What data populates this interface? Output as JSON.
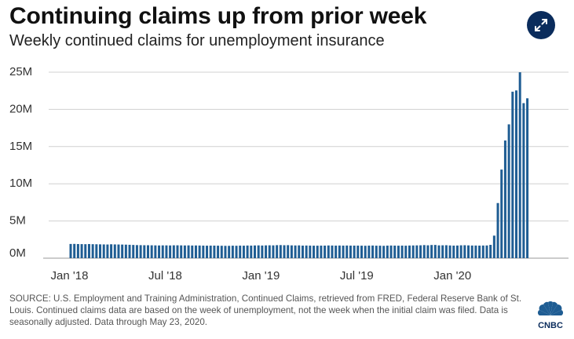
{
  "header": {
    "title": "Continuing claims up from prior week",
    "subtitle": "Weekly continued claims for unemployment insurance"
  },
  "icons": {
    "expand": "expand-arrows-icon",
    "logo": "cnbc-peacock-logo-icon"
  },
  "logo_text": "CNBC",
  "source": "SOURCE: U.S. Employment and Training Administration, Continued Claims, retrieved from FRED, Federal Reserve Bank of St. Louis. Continued claims data are based on the week of unemployment, not the week when the initial claim was filed. Data is seasonally adjusted. Data through May 23, 2020.",
  "colors": {
    "bar": "#1f5d93",
    "grid": "#d0d0d0",
    "accent": "#0a2c5c"
  },
  "chart_data": {
    "type": "bar",
    "title": "Continuing claims up from prior week",
    "subtitle": "Weekly continued claims for unemployment insurance",
    "ylim": [
      0,
      25000000
    ],
    "yticks": [
      0,
      5000000,
      10000000,
      15000000,
      20000000,
      25000000
    ],
    "ytick_labels": [
      "0M",
      "5M",
      "10M",
      "15M",
      "20M",
      "25M"
    ],
    "xtick_labels": [
      "Jan '18",
      "Jul '18",
      "Jan '19",
      "Jul '19",
      "Jan '20"
    ],
    "xtick_weeks": [
      0,
      26,
      52,
      78,
      104
    ],
    "x_start": "2018-01-06",
    "x_end": "2020-05-23",
    "frequency": "weekly",
    "series": [
      {
        "values": [
          1910000,
          1920000,
          1900000,
          1890000,
          1880000,
          1900000,
          1880000,
          1870000,
          1860000,
          1850000,
          1840000,
          1870000,
          1850000,
          1840000,
          1830000,
          1820000,
          1800000,
          1780000,
          1760000,
          1750000,
          1740000,
          1740000,
          1730000,
          1720000,
          1710000,
          1720000,
          1720000,
          1710000,
          1730000,
          1730000,
          1720000,
          1710000,
          1720000,
          1700000,
          1710000,
          1700000,
          1690000,
          1680000,
          1690000,
          1690000,
          1680000,
          1670000,
          1660000,
          1660000,
          1680000,
          1670000,
          1690000,
          1680000,
          1700000,
          1690000,
          1710000,
          1720000,
          1700000,
          1720000,
          1730000,
          1720000,
          1750000,
          1760000,
          1740000,
          1750000,
          1720000,
          1710000,
          1720000,
          1690000,
          1700000,
          1690000,
          1680000,
          1680000,
          1690000,
          1690000,
          1710000,
          1700000,
          1690000,
          1700000,
          1690000,
          1700000,
          1690000,
          1690000,
          1690000,
          1680000,
          1670000,
          1690000,
          1700000,
          1680000,
          1680000,
          1660000,
          1690000,
          1700000,
          1690000,
          1680000,
          1690000,
          1680000,
          1700000,
          1710000,
          1720000,
          1730000,
          1760000,
          1730000,
          1770000,
          1780000,
          1720000,
          1730000,
          1740000,
          1710000,
          1690000,
          1700000,
          1730000,
          1740000,
          1720000,
          1700000,
          1700000,
          1690000,
          1700000,
          1710000,
          1790000,
          3030000,
          7410000,
          11910000,
          15820000,
          17990000,
          22380000,
          22550000,
          24990000,
          20840000,
          21490000
        ]
      }
    ]
  }
}
